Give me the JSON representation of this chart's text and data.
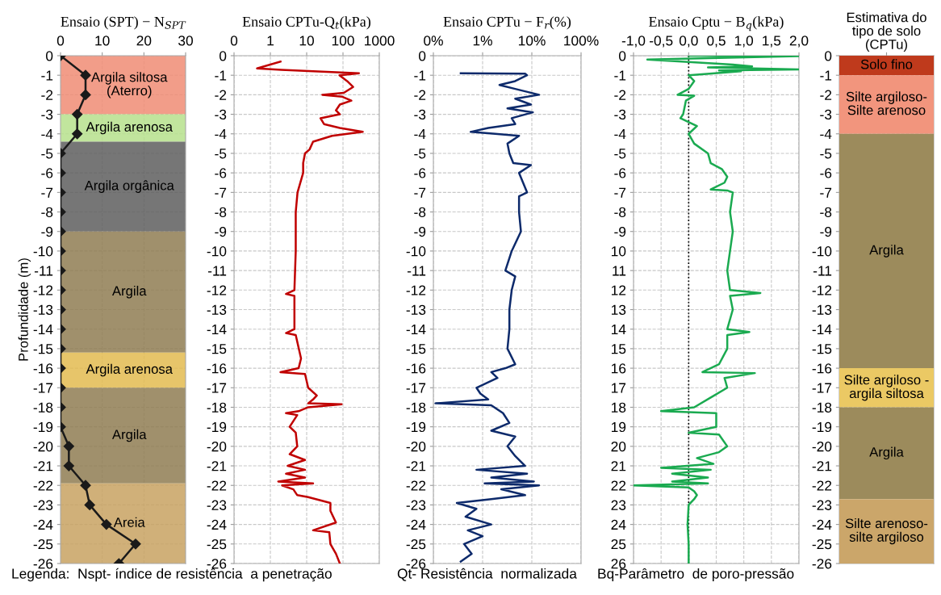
{
  "chart_data": [
    {
      "type": "line",
      "title": "Ensaio (SPT) − N$_{SPT}$",
      "ylabel": "Profundidade (m)",
      "xlim": [
        0,
        30
      ],
      "xticks": [
        0,
        10,
        20,
        30
      ],
      "ylim": [
        -26,
        0
      ],
      "yticks": [
        0,
        -1,
        -2,
        -3,
        -4,
        -5,
        -6,
        -7,
        -8,
        -9,
        -10,
        -11,
        -12,
        -13,
        -14,
        -15,
        -16,
        -17,
        -18,
        -19,
        -20,
        -21,
        -22,
        -23,
        -24,
        -25,
        -26
      ],
      "grid": true,
      "marker": "diamond",
      "series": [
        {
          "color": "#1a1a1a",
          "x": [
            0,
            6,
            6,
            4,
            4,
            0,
            0,
            0,
            0,
            0,
            0,
            0,
            0,
            0,
            0,
            0,
            0,
            0,
            0,
            0,
            2,
            2,
            6,
            7,
            11,
            18,
            14
          ],
          "values": [
            0,
            -1,
            -2,
            -3,
            -4,
            -5,
            -6,
            -7,
            -8,
            -9,
            -10,
            -11,
            -12,
            -13,
            -14,
            -15,
            -16,
            -17,
            -18,
            -19,
            -20,
            -21,
            -22,
            -23,
            -24,
            -25,
            -26
          ]
        }
      ],
      "bands": [
        {
          "axis": "y",
          "from": 0,
          "to": -3,
          "label": "Argila siltosa\n(Aterro)",
          "color": "#f08c74"
        },
        {
          "axis": "y",
          "from": -3,
          "to": -4.4,
          "label": "Argila arenosa",
          "color": "#b6e08c"
        },
        {
          "axis": "y",
          "from": -4.4,
          "to": -9,
          "label": "Argila orgânica",
          "color": "#5e5e5e"
        },
        {
          "axis": "y",
          "from": -9,
          "to": -15.2,
          "label": "Argila",
          "color": "#8f7d52"
        },
        {
          "axis": "y",
          "from": -15.2,
          "to": -17,
          "label": "Argila arenosa",
          "color": "#e3bb50"
        },
        {
          "axis": "y",
          "from": -17,
          "to": -21.9,
          "label": "Argila",
          "color": "#8f7d52"
        },
        {
          "axis": "y",
          "from": -21.9,
          "to": -26,
          "label": "Areia",
          "color": "#c8a262"
        }
      ],
      "annotations": [
        "Legenda:  Nspt- índice de resistência  a penetração"
      ]
    },
    {
      "type": "line",
      "title": "Ensaio CPTu-Q$_{t}$(kPa)",
      "log": "x",
      "xlim": [
        0.1,
        1000
      ],
      "xticks": [
        {
          "value": 0.1,
          "label": "0"
        },
        1,
        10,
        100,
        1000
      ],
      "ylim": [
        -26,
        0
      ],
      "yticks": [
        0,
        -1,
        -2,
        -3,
        -4,
        -5,
        -6,
        -7,
        -8,
        -9,
        -10,
        -11,
        -12,
        -13,
        -14,
        -15,
        -16,
        -17,
        -18,
        -19,
        -20,
        -21,
        -22,
        -23,
        -24,
        -25,
        -26
      ],
      "grid": true,
      "series": [
        {
          "color": "#c00000",
          "x": [
            1.9,
            0.43,
            2.0,
            275,
            80,
            130,
            190,
            105,
            27,
            96,
            170,
            82,
            64,
            82,
            24,
            30,
            82,
            350,
            50,
            15,
            12,
            9,
            8,
            8,
            5.6,
            5,
            5,
            4.6,
            2.7,
            4.6,
            4.6,
            2.7,
            5,
            7,
            6,
            1.9,
            9,
            11,
            19,
            15,
            11,
            92,
            11,
            6,
            2.7,
            5.5,
            3.4,
            5,
            5.5,
            3.4,
            9,
            3,
            9,
            2.7,
            9,
            1.65,
            15,
            2.1,
            4.3,
            5.5,
            11,
            45,
            45,
            64,
            15,
            42,
            45,
            64,
            82
          ],
          "values": [
            -0.3,
            -0.65,
            -0.72,
            -0.9,
            -1.0,
            -1.3,
            -1.6,
            -1.9,
            -2.0,
            -2.1,
            -2.3,
            -2.5,
            -2.8,
            -3.0,
            -3.2,
            -3.5,
            -3.7,
            -3.9,
            -4.1,
            -4.4,
            -4.8,
            -5.0,
            -5.5,
            -6.0,
            -7.0,
            -8,
            -10,
            -12,
            -12.2,
            -12.3,
            -14,
            -14.2,
            -14.3,
            -15.5,
            -16,
            -16.2,
            -16.3,
            -17,
            -17.4,
            -17.6,
            -17.8,
            -17.85,
            -18.0,
            -18.2,
            -18.3,
            -18.4,
            -19,
            -19.3,
            -20,
            -20.4,
            -20.7,
            -21,
            -21.2,
            -21.4,
            -21.6,
            -21.8,
            -21.9,
            -22.0,
            -22.2,
            -22.5,
            -22.6,
            -22.9,
            -23.3,
            -23.9,
            -24.3,
            -24.4,
            -25,
            -25.5,
            -26
          ]
        }
      ]
    },
    {
      "type": "line",
      "title": "Ensaio CPTu − F$_{r}$(%)",
      "log": "x",
      "xlim": [
        0.1,
        100
      ],
      "xticks": [
        {
          "value": 0.1,
          "label": "0%"
        },
        {
          "value": 1,
          "label": "1%"
        },
        {
          "value": 10,
          "label": "10%"
        },
        {
          "value": 100,
          "label": "100%"
        }
      ],
      "ylim": [
        -26,
        0
      ],
      "yticks": [
        0,
        -1,
        -2,
        -3,
        -4,
        -5,
        -6,
        -7,
        -8,
        -9,
        -10,
        -11,
        -12,
        -13,
        -14,
        -15,
        -16,
        -17,
        -18,
        -19,
        -20,
        -21,
        -22,
        -23,
        -24,
        -25,
        -26
      ],
      "grid": true,
      "annotations": [
        "Qt- Resistência  normalizada"
      ],
      "series": [
        {
          "color": "#0d2a6b",
          "x": [
            0.36,
            7.3,
            8,
            4.6,
            2.2,
            4.6,
            14,
            4.6,
            9.6,
            3.2,
            10.5,
            3.9,
            4.6,
            1.3,
            0.57,
            1.8,
            5.5,
            3.2,
            3.5,
            4.2,
            9.6,
            5.5,
            8,
            5.5,
            5.5,
            6,
            3.9,
            2.9,
            4.6,
            3.9,
            3.5,
            3.5,
            3.2,
            4.6,
            2.9,
            1.5,
            2,
            0.75,
            0.9,
            1.3,
            0.11,
            1.5,
            2.6,
            3.5,
            1.5,
            4.6,
            3.2,
            4.6,
            7.3,
            0.75,
            8,
            1.5,
            11,
            1.1,
            14,
            2.4,
            7.3,
            1.5,
            0.3,
            0.75,
            0.45,
            1.5,
            0.5,
            1.0,
            0.42,
            0.6,
            0.36
          ],
          "values": [
            -0.9,
            -0.92,
            -1.0,
            -1.3,
            -1.5,
            -1.7,
            -2.0,
            -2.2,
            -2.5,
            -2.7,
            -2.9,
            -3.2,
            -3.5,
            -3.7,
            -3.9,
            -4.0,
            -4.1,
            -4.5,
            -5.0,
            -5.5,
            -5.6,
            -6.0,
            -7.0,
            -7.2,
            -8,
            -9,
            -10,
            -11,
            -11.3,
            -12,
            -13,
            -14,
            -15,
            -15.8,
            -16,
            -16.2,
            -16.5,
            -17,
            -17.3,
            -17.6,
            -17.8,
            -17.9,
            -18.3,
            -18.8,
            -19.2,
            -19.5,
            -20,
            -20.5,
            -21,
            -21.2,
            -21.4,
            -21.6,
            -21.8,
            -21.9,
            -22.0,
            -22.2,
            -22.5,
            -22.7,
            -22.9,
            -23.2,
            -23.6,
            -24.0,
            -24.3,
            -24.6,
            -25,
            -25.5,
            -25.9
          ]
        }
      ]
    },
    {
      "type": "line",
      "title": "Ensaio Cptu − B$_{q}$(kPa)",
      "xlim": [
        -1.0,
        2.0
      ],
      "xticks": [
        {
          "value": -1.0,
          "label": "-1,0"
        },
        {
          "value": -0.5,
          "label": "-0,5"
        },
        {
          "value": 0.0,
          "label": "0,0"
        },
        {
          "value": 0.5,
          "label": "0,5"
        },
        {
          "value": 1.0,
          "label": "1,0"
        },
        {
          "value": 1.5,
          "label": "1,5"
        },
        {
          "value": 2.0,
          "label": "2,0"
        }
      ],
      "ylim": [
        -26,
        0
      ],
      "yticks": [
        0,
        -1,
        -2,
        -3,
        -4,
        -5,
        -6,
        -7,
        -8,
        -9,
        {
          "value": -10,
          "label": "10"
        },
        {
          "value": -11,
          "label": "11"
        },
        {
          "value": -12,
          "label": "12"
        },
        {
          "value": -13,
          "label": "13"
        },
        {
          "value": -14,
          "label": "14"
        },
        {
          "value": -15,
          "label": "15"
        },
        {
          "value": -16,
          "label": "16"
        },
        {
          "value": -17,
          "label": "17"
        },
        {
          "value": -18,
          "label": "18"
        },
        {
          "value": -19,
          "label": "19"
        },
        {
          "value": -20,
          "label": "20"
        },
        {
          "value": -21,
          "label": "21"
        },
        {
          "value": -22,
          "label": "22"
        },
        {
          "value": -23,
          "label": "23"
        },
        {
          "value": -24,
          "label": "24"
        },
        {
          "value": -25,
          "label": "25"
        },
        {
          "value": -26,
          "label": "26"
        }
      ],
      "grid": true,
      "ref_lines": [
        {
          "axis": "x",
          "value": 0,
          "color": "#000000",
          "line_style": "dotted"
        }
      ],
      "series": [
        {
          "color": "#1aaa50",
          "x": [
            0.0,
            2.0,
            -0.75,
            0.8,
            1.15,
            0.35,
            2.0,
            0.55,
            0.95,
            0.0,
            0.1,
            0.0,
            -0.2,
            0.1,
            -0.05,
            -0.1,
            -0.15,
            0.15,
            0.0,
            0.1,
            0.35,
            0.4,
            0.6,
            0.7,
            0.65,
            0.4,
            0.7,
            0.8,
            0.75,
            0.8,
            0.75,
            0.7,
            0.75,
            1.3,
            0.75,
            0.8,
            0.7,
            1.1,
            0.7,
            0.7,
            0.55,
            0.25,
            1.2,
            0.65,
            0.7,
            0.4,
            0.1,
            -0.5,
            0.5,
            0.5,
            0.0,
            0.55,
            0.7,
            0.55,
            0.15,
            0.45,
            -0.5,
            0.4,
            -0.3,
            0.35,
            -0.3,
            0.35,
            -1.0,
            0.0,
            0.1,
            0.15,
            0.1,
            0.0,
            -0.02,
            0.0,
            0.0
          ],
          "values": [
            0,
            -0.02,
            -0.2,
            -0.45,
            -0.55,
            -0.6,
            -0.7,
            -0.75,
            -0.8,
            -1.0,
            -1.3,
            -1.7,
            -2.0,
            -2.05,
            -2.3,
            -3.0,
            -3.2,
            -3.6,
            -4.0,
            -4.5,
            -5.0,
            -5.5,
            -5.8,
            -6.2,
            -6.5,
            -6.85,
            -6.9,
            -7.0,
            -8,
            -9,
            -10,
            -11,
            -12,
            -12.15,
            -12.3,
            -13,
            -14,
            -14.15,
            -14.3,
            -15,
            -15.8,
            -16.2,
            -16.25,
            -16.5,
            -17,
            -17.5,
            -18,
            -18.2,
            -18.3,
            -19,
            -19.3,
            -19.4,
            -20,
            -20.3,
            -20.6,
            -20.9,
            -21.1,
            -21.2,
            -21.4,
            -21.6,
            -21.8,
            -21.9,
            -22.0,
            -22.1,
            -22.3,
            -22.5,
            -22.7,
            -23.0,
            -24,
            -25,
            -26
          ]
        }
      ],
      "annotations": [
        "Bq-Parâmetro  de poro-pressão"
      ]
    },
    {
      "type": "bar",
      "stacked": true,
      "title": "Estimativa do\ntipo de solo\n(CPTu)",
      "categories": [
        null
      ],
      "ylim": [
        -26,
        0
      ],
      "yticks": [
        0,
        -1,
        -2,
        -3,
        -4,
        -5,
        -6,
        -7,
        -8,
        -9,
        -10,
        -11,
        -12,
        -13,
        -14,
        -15,
        -16,
        -17,
        -18,
        -19,
        -20,
        -21,
        -22,
        -23,
        -24,
        -25,
        -26
      ],
      "grid": "y",
      "series": [
        {
          "name": "Solo fino",
          "color": "#bf3a1c",
          "values": [
            -1
          ]
        },
        {
          "name": "Silte argiloso-\nSilte arenoso",
          "color": "#f2957d",
          "values": [
            -3
          ]
        },
        {
          "name": "Argila",
          "color": "#9c8b5c",
          "values": [
            -12
          ]
        },
        {
          "name": "Silte argiloso -\nargila siltosa",
          "color": "#ebc964",
          "values": [
            -2
          ]
        },
        {
          "name": "Argila",
          "color": "#9c8b5c",
          "values": [
            -4.7
          ]
        },
        {
          "name": "Silte arenoso-\nsilte argiloso",
          "color": "#cba66a",
          "values": [
            -3.3
          ]
        }
      ]
    }
  ]
}
